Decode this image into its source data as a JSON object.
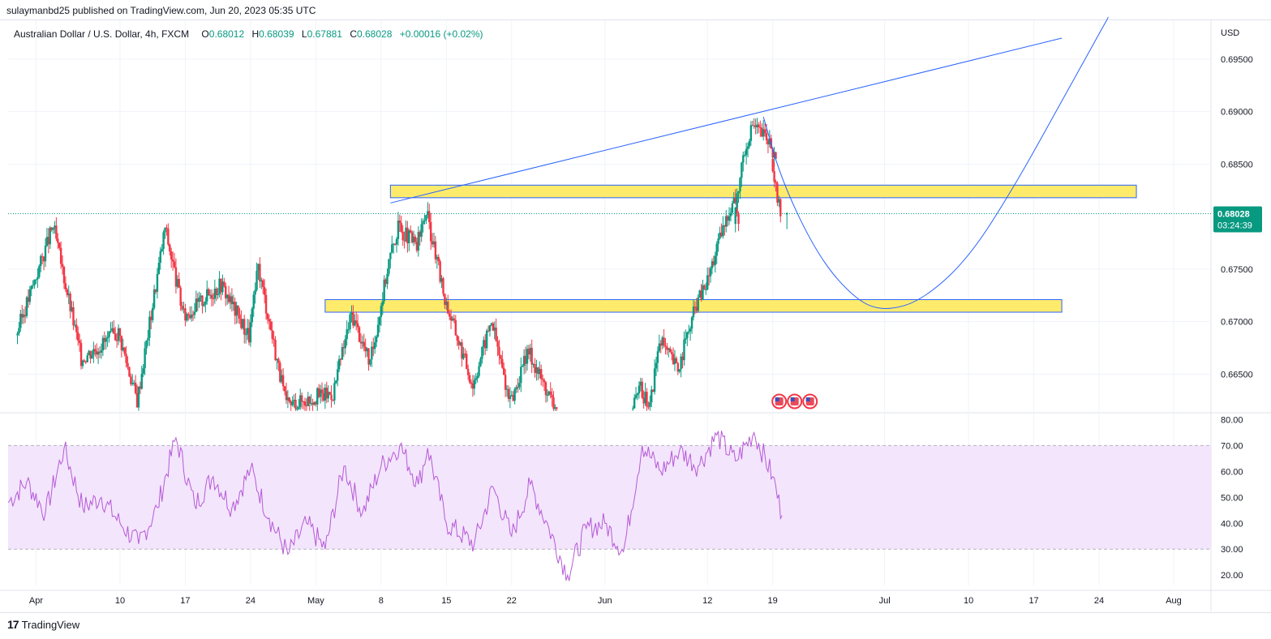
{
  "header": {
    "publish_line": "sulaymanbd25 published on TradingView.com, Jun 20, 2023 05:35 UTC"
  },
  "legend": {
    "symbol": "Australian Dollar / U.S. Dollar, 4h, FXCM",
    "o_label": "O",
    "o_value": "0.68012",
    "h_label": "H",
    "h_value": "0.68039",
    "l_label": "L",
    "l_value": "0.67881",
    "c_label": "C",
    "c_value": "0.68028",
    "change": "+0.00016 (+0.02%)"
  },
  "price_axis": {
    "currency": "USD",
    "ticks": [
      "0.69500",
      "0.69000",
      "0.68500",
      "0.67500",
      "0.67000",
      "0.66500"
    ],
    "last_price": "0.68028",
    "countdown": "03:24:39"
  },
  "rsi_axis": {
    "ticks": [
      "80.00",
      "70.00",
      "60.00",
      "50.00",
      "40.00",
      "30.00",
      "20.00"
    ]
  },
  "time_axis": {
    "ticks": [
      "Apr",
      "10",
      "17",
      "24",
      "May",
      "8",
      "15",
      "22",
      "Jun",
      "12",
      "19",
      "Jul",
      "10",
      "17",
      "24",
      "Aug"
    ]
  },
  "footer": {
    "brand": "TradingView"
  },
  "colors": {
    "up": "#089981",
    "down": "#f23645",
    "drawing": "#2962ff",
    "zone_fill": "#ffeb6b",
    "rsi_line": "#b65ad6",
    "rsi_band": "#f3e5fc"
  },
  "chart_data": {
    "type": "candlestick",
    "interval": "4h",
    "x_range": [
      "2023-03-29",
      "2023-08-05"
    ],
    "price_range": [
      0.6614,
      0.6987
    ],
    "last_candle": {
      "open": 0.68012,
      "high": 0.68039,
      "low": 0.67881,
      "close": 0.68028
    },
    "swing_points": [
      {
        "date": "2023-03-30",
        "price": 0.6687
      },
      {
        "date": "2023-04-03",
        "price": 0.6791
      },
      {
        "date": "2023-04-06",
        "price": 0.6665
      },
      {
        "date": "2023-04-10",
        "price": 0.669
      },
      {
        "date": "2023-04-12",
        "price": 0.6625
      },
      {
        "date": "2023-04-15",
        "price": 0.679
      },
      {
        "date": "2023-04-17",
        "price": 0.6705
      },
      {
        "date": "2023-04-21",
        "price": 0.6736
      },
      {
        "date": "2023-04-24",
        "price": 0.6686
      },
      {
        "date": "2023-04-25",
        "price": 0.6752
      },
      {
        "date": "2023-04-28",
        "price": 0.662
      },
      {
        "date": "2023-05-01",
        "price": 0.6628
      },
      {
        "date": "2023-05-03",
        "price": 0.6632
      },
      {
        "date": "2023-05-05",
        "price": 0.6708
      },
      {
        "date": "2023-05-07",
        "price": 0.666
      },
      {
        "date": "2023-05-09",
        "price": 0.6758
      },
      {
        "date": "2023-05-10",
        "price": 0.679
      },
      {
        "date": "2023-05-12",
        "price": 0.6772
      },
      {
        "date": "2023-05-13",
        "price": 0.6805
      },
      {
        "date": "2023-05-15",
        "price": 0.6722
      },
      {
        "date": "2023-05-18",
        "price": 0.664
      },
      {
        "date": "2023-05-20",
        "price": 0.6702
      },
      {
        "date": "2023-05-22",
        "price": 0.6622
      },
      {
        "date": "2023-05-24",
        "price": 0.6672
      },
      {
        "date": "2023-05-27",
        "price": 0.6614
      },
      {
        "date": "2023-06-04",
        "price": 0.6614
      },
      {
        "date": "2023-06-05",
        "price": 0.6635
      },
      {
        "date": "2023-06-06",
        "price": 0.662
      },
      {
        "date": "2023-06-07",
        "price": 0.6682
      },
      {
        "date": "2023-06-09",
        "price": 0.6655
      },
      {
        "date": "2023-06-11",
        "price": 0.6718
      },
      {
        "date": "2023-06-12",
        "price": 0.6735
      },
      {
        "date": "2023-06-13",
        "price": 0.6765
      },
      {
        "date": "2023-06-14",
        "price": 0.6792
      },
      {
        "date": "2023-06-15",
        "price": 0.682
      },
      {
        "date": "2023-06-15",
        "price": 0.6796
      },
      {
        "date": "2023-06-16",
        "price": 0.686
      },
      {
        "date": "2023-06-17",
        "price": 0.6888
      },
      {
        "date": "2023-06-19",
        "price": 0.687
      },
      {
        "date": "2023-06-19",
        "price": 0.6848
      },
      {
        "date": "2023-06-20",
        "price": 0.6802
      }
    ],
    "zones": [
      {
        "from": "2023-05-09",
        "to": "2023-07-28",
        "low": 0.6818,
        "high": 0.683
      },
      {
        "from": "2023-05-02",
        "to": "2023-07-20",
        "low": 0.6709,
        "high": 0.6721
      }
    ],
    "trendline": {
      "from": {
        "date": "2023-05-09",
        "price": 0.6813
      },
      "to": {
        "date": "2023-07-20",
        "price": 0.697
      }
    },
    "projection_curve": [
      {
        "date": "2023-06-18",
        "price": 0.6895
      },
      {
        "date": "2023-06-20",
        "price": 0.6833
      },
      {
        "date": "2023-06-24",
        "price": 0.676
      },
      {
        "date": "2023-06-28",
        "price": 0.672
      },
      {
        "date": "2023-07-01",
        "price": 0.671
      },
      {
        "date": "2023-07-05",
        "price": 0.672
      },
      {
        "date": "2023-07-10",
        "price": 0.676
      },
      {
        "date": "2023-07-15",
        "price": 0.683
      },
      {
        "date": "2023-07-20",
        "price": 0.691
      },
      {
        "date": "2023-07-25",
        "price": 0.699
      }
    ],
    "rsi": {
      "range": [
        16,
        82
      ],
      "overbought": 70,
      "oversold": 30,
      "values": [
        {
          "date": "2023-03-29",
          "value": 48
        },
        {
          "date": "2023-03-31",
          "value": 56
        },
        {
          "date": "2023-04-02",
          "value": 44
        },
        {
          "date": "2023-04-04",
          "value": 69
        },
        {
          "date": "2023-04-06",
          "value": 46
        },
        {
          "date": "2023-04-08",
          "value": 50
        },
        {
          "date": "2023-04-10",
          "value": 40
        },
        {
          "date": "2023-04-12",
          "value": 32
        },
        {
          "date": "2023-04-14",
          "value": 46
        },
        {
          "date": "2023-04-16",
          "value": 73
        },
        {
          "date": "2023-04-18",
          "value": 47
        },
        {
          "date": "2023-04-20",
          "value": 58
        },
        {
          "date": "2023-04-22",
          "value": 46
        },
        {
          "date": "2023-04-24",
          "value": 61
        },
        {
          "date": "2023-04-26",
          "value": 42
        },
        {
          "date": "2023-04-28",
          "value": 28
        },
        {
          "date": "2023-04-30",
          "value": 40
        },
        {
          "date": "2023-05-02",
          "value": 30
        },
        {
          "date": "2023-05-04",
          "value": 62
        },
        {
          "date": "2023-05-06",
          "value": 44
        },
        {
          "date": "2023-05-08",
          "value": 62
        },
        {
          "date": "2023-05-10",
          "value": 70
        },
        {
          "date": "2023-05-12",
          "value": 55
        },
        {
          "date": "2023-05-13",
          "value": 69
        },
        {
          "date": "2023-05-15",
          "value": 40
        },
        {
          "date": "2023-05-18",
          "value": 32
        },
        {
          "date": "2023-05-20",
          "value": 54
        },
        {
          "date": "2023-05-22",
          "value": 35
        },
        {
          "date": "2023-05-24",
          "value": 55
        },
        {
          "date": "2023-05-26",
          "value": 38
        },
        {
          "date": "2023-05-28",
          "value": 20
        },
        {
          "date": "2023-05-30",
          "value": 38
        },
        {
          "date": "2023-06-01",
          "value": 40
        },
        {
          "date": "2023-06-03",
          "value": 29
        },
        {
          "date": "2023-06-05",
          "value": 70
        },
        {
          "date": "2023-06-07",
          "value": 60
        },
        {
          "date": "2023-06-09",
          "value": 68
        },
        {
          "date": "2023-06-11",
          "value": 62
        },
        {
          "date": "2023-06-13",
          "value": 74
        },
        {
          "date": "2023-06-15",
          "value": 64
        },
        {
          "date": "2023-06-17",
          "value": 75
        },
        {
          "date": "2023-06-19",
          "value": 58
        },
        {
          "date": "2023-06-20",
          "value": 43
        }
      ]
    },
    "events": {
      "date": "2023-06-19",
      "count": 3,
      "country": "US"
    }
  }
}
